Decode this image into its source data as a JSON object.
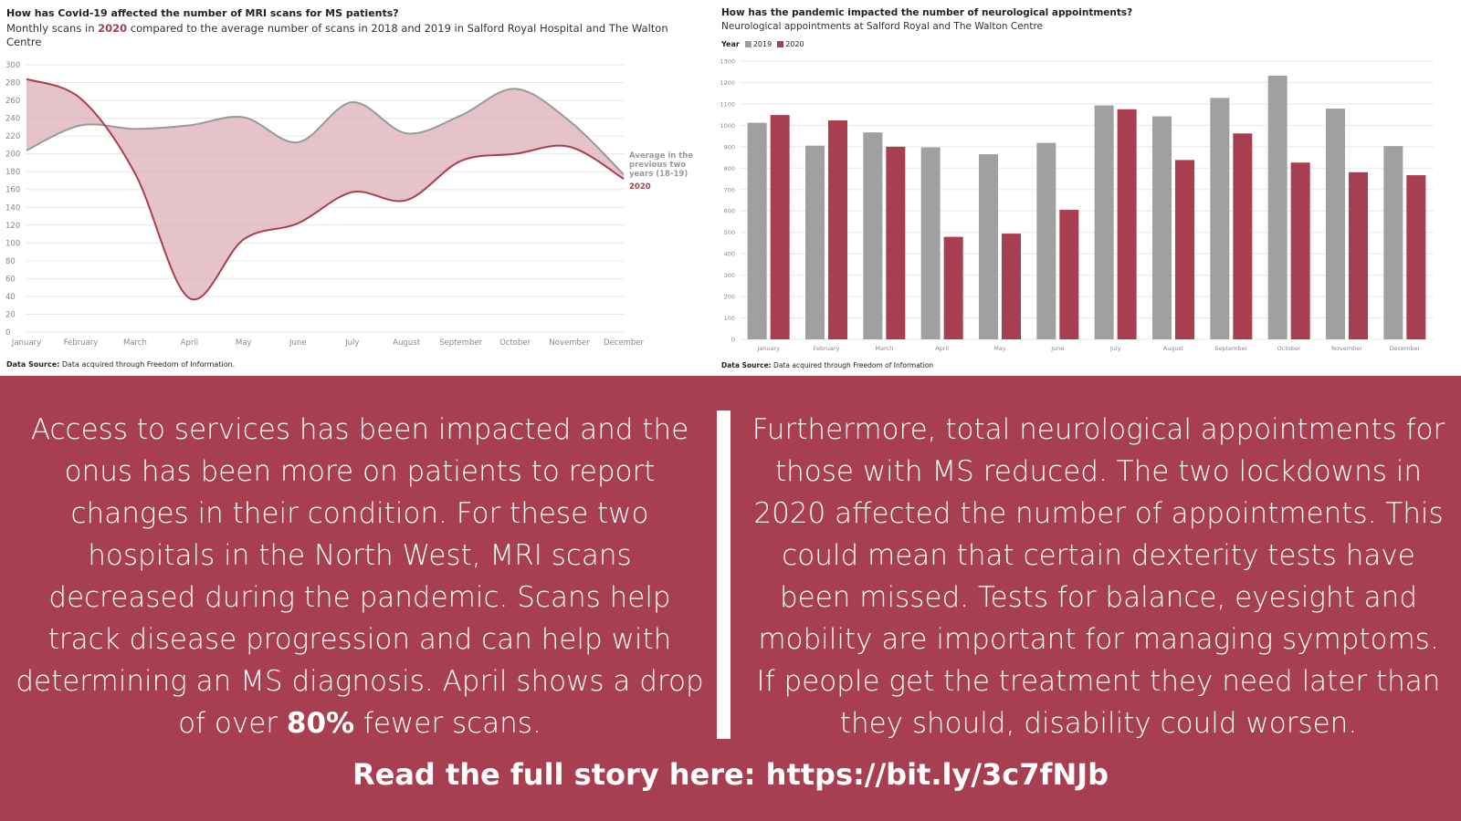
{
  "left_chart": {
    "title": "How has Covid-19 affected the number of MRI scans for MS patients?",
    "subtitle_pre": "Monthly scans in ",
    "subtitle_highlight": "2020",
    "subtitle_post": " compared to the average number of scans in 2018 and 2019 in Salford Royal Hospital and The Walton Centre",
    "source_label": "Data Source:",
    "source_text": " Data acquired through Freedom of Information.",
    "label_avg_line1": "Average in the",
    "label_avg_line2": "previous two",
    "label_avg_line3": "years (18-19)",
    "label_2020": "2020"
  },
  "right_chart": {
    "title": "How has the pandemic impacted the number of neurological appointments?",
    "subtitle": "Neurological appointments at Salford Royal and The Walton Centre",
    "legend_title": "Year",
    "legend_2019": "2019",
    "legend_2020": "2020",
    "source_label": "Data Source:",
    "source_text": " Data acquired through Freedom of Information"
  },
  "chart_data": [
    {
      "type": "area",
      "title": "How has Covid-19 affected the number of MRI scans for MS patients?",
      "categories": [
        "January",
        "February",
        "March",
        "April",
        "May",
        "June",
        "July",
        "August",
        "September",
        "October",
        "November",
        "December"
      ],
      "ylim": [
        0,
        300
      ],
      "yticks": [
        0,
        20,
        40,
        60,
        80,
        100,
        120,
        140,
        160,
        180,
        200,
        220,
        240,
        260,
        280,
        300
      ],
      "series": [
        {
          "name": "Average in the previous two years (18-19)",
          "values": [
            204,
            232,
            228,
            232,
            241,
            213,
            258,
            223,
            243,
            273,
            237,
            177
          ]
        },
        {
          "name": "2020",
          "values": [
            284,
            262,
            178,
            38,
            104,
            122,
            157,
            148,
            192,
            200,
            208,
            172
          ]
        }
      ],
      "colors": {
        "avg": "#999999",
        "y2020": "#a83f50",
        "fill": "#dcaab3"
      }
    },
    {
      "type": "bar",
      "title": "How has the pandemic impacted the number of neurological appointments?",
      "categories": [
        "January",
        "February",
        "March",
        "April",
        "May",
        "June",
        "July",
        "August",
        "September",
        "October",
        "November",
        "December"
      ],
      "ylim": [
        0,
        1300
      ],
      "yticks": [
        0,
        100,
        200,
        300,
        400,
        500,
        600,
        700,
        800,
        900,
        1000,
        1100,
        1200,
        1300
      ],
      "series": [
        {
          "name": "2019",
          "values": [
            1012,
            905,
            967,
            897,
            865,
            918,
            1093,
            1042,
            1128,
            1232,
            1078,
            903
          ]
        },
        {
          "name": "2020",
          "values": [
            1048,
            1023,
            900,
            479,
            494,
            605,
            1075,
            838,
            962,
            826,
            781,
            767
          ]
        }
      ],
      "colors": {
        "y2019": "#a0a0a0",
        "y2020": "#a83f50"
      }
    }
  ],
  "text": {
    "left_paragraph_pre": "Access to services has been impacted and the onus has been more on patients to report changes in their condition. For these two hospitals in the North West, MRI scans decreased during the pandemic. Scans help track disease progression and can help with determining an MS diagnosis. April shows a drop of over ",
    "left_paragraph_bold": "80%",
    "left_paragraph_post": " fewer scans.",
    "right_paragraph": "Furthermore, total neurological appointments for those with MS reduced. The two lockdowns in 2020 affected the number of appointments. This could mean that certain dexterity tests have been missed. Tests for balance, eyesight and mobility are important for managing symptoms. If people get the treatment they need later than they should, disability could worsen.",
    "cta": "Read the full story here: https://bit.ly/3c7fNJb"
  }
}
